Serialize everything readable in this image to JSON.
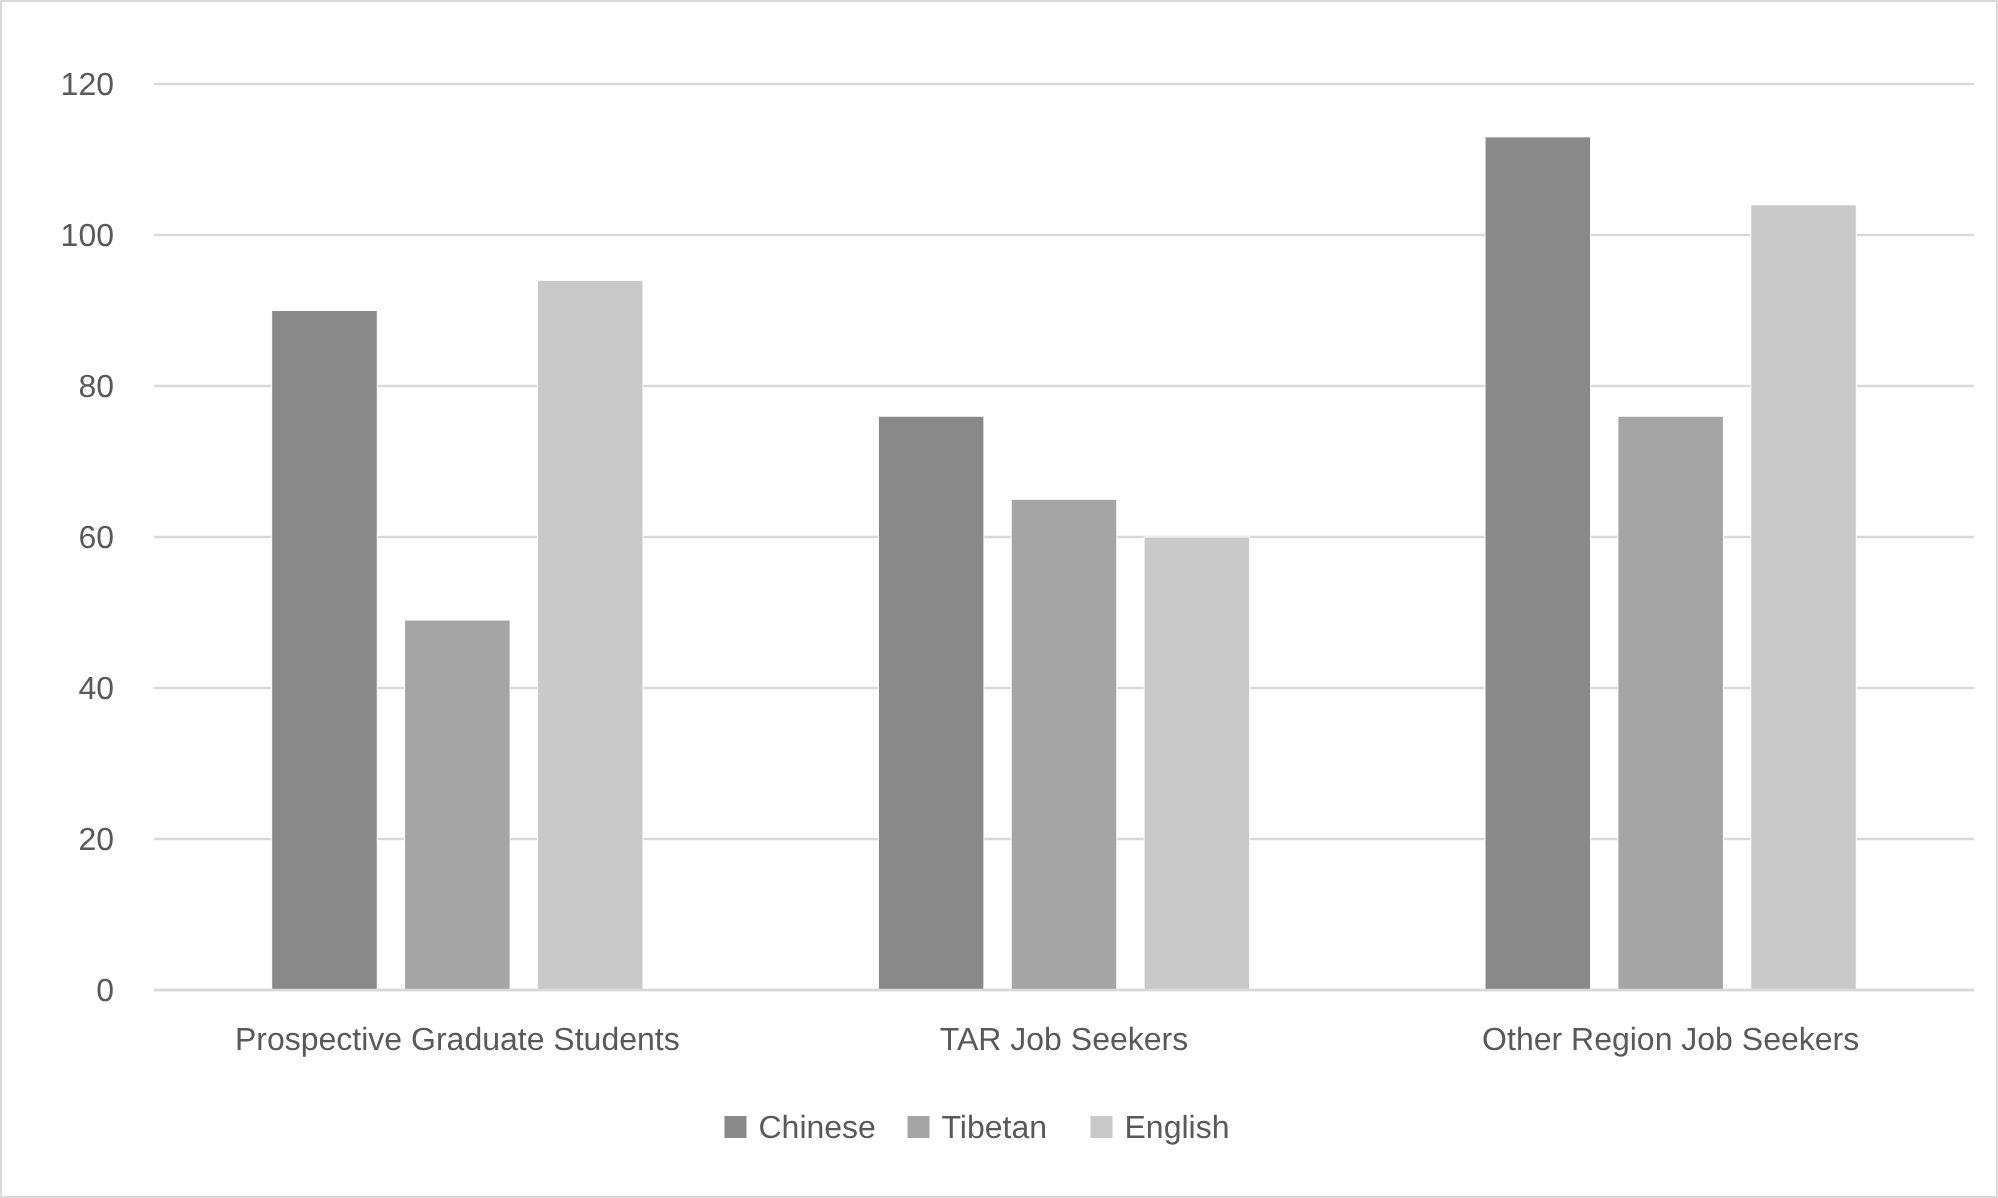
{
  "chart_data": {
    "type": "bar",
    "categories": [
      "Prospective Graduate Students",
      "TAR Job Seekers",
      "Other Region Job Seekers"
    ],
    "series": [
      {
        "name": "Chinese",
        "color": "#898989",
        "values": [
          90,
          76,
          113
        ]
      },
      {
        "name": "Tibetan",
        "color": "#a5a5a5",
        "values": [
          49,
          65,
          76
        ]
      },
      {
        "name": "English",
        "color": "#c9c9c9",
        "values": [
          94,
          60,
          104
        ]
      }
    ],
    "ylim": [
      0,
      120
    ],
    "yticks": [
      0,
      20,
      40,
      60,
      80,
      100,
      120
    ],
    "grid": "y",
    "legend": "bottom"
  }
}
